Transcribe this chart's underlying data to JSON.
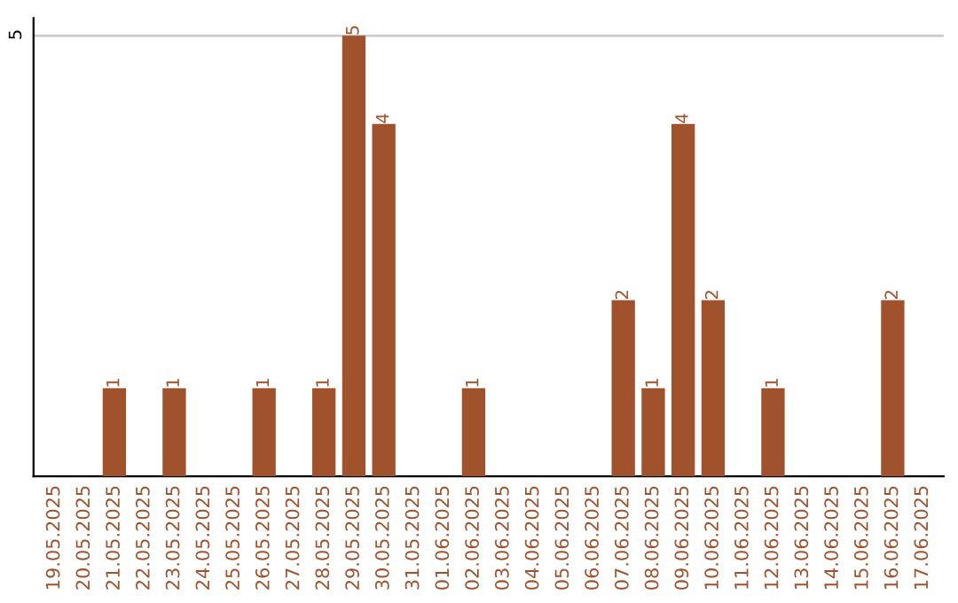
{
  "chart_data": {
    "type": "bar",
    "categories": [
      "19.05.2025",
      "20.05.2025",
      "21.05.2025",
      "22.05.2025",
      "23.05.2025",
      "24.05.2025",
      "25.05.2025",
      "26.05.2025",
      "27.05.2025",
      "28.05.2025",
      "29.05.2025",
      "30.05.2025",
      "31.05.2025",
      "01.06.2025",
      "02.06.2025",
      "03.06.2025",
      "04.06.2025",
      "05.06.2025",
      "06.06.2025",
      "07.06.2025",
      "08.06.2025",
      "09.06.2025",
      "10.06.2025",
      "11.06.2025",
      "12.06.2025",
      "13.06.2025",
      "14.06.2025",
      "15.06.2025",
      "16.06.2025",
      "17.06.2025"
    ],
    "values": [
      0,
      0,
      1,
      0,
      1,
      0,
      0,
      1,
      0,
      1,
      5,
      4,
      0,
      0,
      1,
      0,
      0,
      0,
      0,
      2,
      1,
      4,
      2,
      0,
      1,
      0,
      0,
      0,
      2,
      0
    ],
    "value_labels": [
      null,
      null,
      "1",
      null,
      "1",
      null,
      null,
      "1",
      null,
      "1",
      "5",
      "4",
      null,
      null,
      "1",
      null,
      null,
      null,
      null,
      "2",
      "1",
      "4",
      "2",
      null,
      "1",
      null,
      null,
      null,
      "2",
      null
    ],
    "color": "#a0522d",
    "ylim": [
      0,
      5.2
    ],
    "yticks": [
      5
    ],
    "grid": "y"
  }
}
